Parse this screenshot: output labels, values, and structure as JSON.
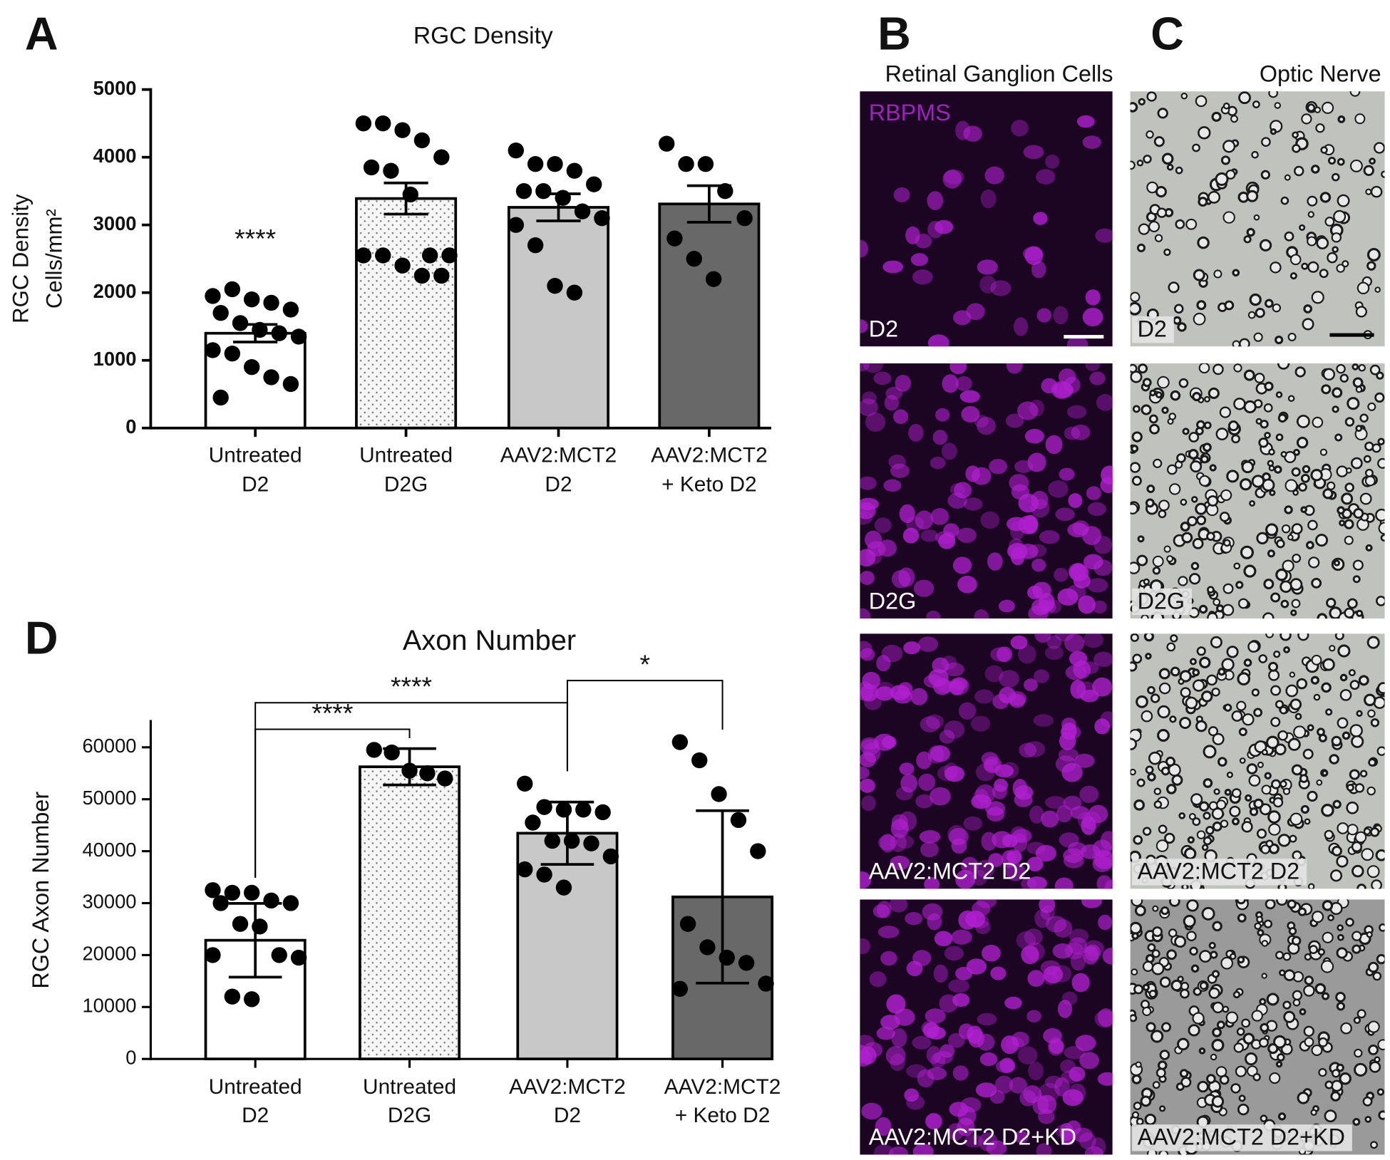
{
  "chart_data": [
    {
      "type": "bar",
      "panel": "A",
      "title": "RGC Density",
      "ylabel": [
        "RGC Density",
        "Cells/mm²"
      ],
      "categories": [
        [
          "Untreated",
          "D2"
        ],
        [
          "Untreated",
          "D2G"
        ],
        [
          "AAV2:MCT2",
          "D2"
        ],
        [
          "AAV2:MCT2",
          "+ Keto D2"
        ]
      ],
      "values": [
        1400,
        3390,
        3260,
        3310
      ],
      "errors": [
        130,
        230,
        200,
        270
      ],
      "points": [
        [
          1950,
          2050,
          1900,
          1850,
          1750,
          1700,
          1550,
          1450,
          1400,
          1350,
          1150,
          1100,
          900,
          750,
          650,
          450
        ],
        [
          4500,
          4500,
          4400,
          4250,
          4000,
          3850,
          3800,
          3450,
          2550,
          2550,
          2550,
          2550,
          2400,
          2250,
          2250
        ],
        [
          4100,
          3900,
          3900,
          3800,
          3600,
          3500,
          3500,
          3400,
          3200,
          3100,
          3000,
          2700,
          2100,
          2000
        ],
        [
          4200,
          3900,
          3900,
          3500,
          3100,
          2800,
          2500,
          2200
        ]
      ],
      "bar_colors": [
        "#ffffff",
        "#f4f4f4",
        "#c8c8c8",
        "#686868"
      ],
      "dotted": [
        false,
        true,
        false,
        false
      ],
      "ylim": [
        0,
        5000
      ],
      "yticks": [
        0,
        1000,
        2000,
        3000,
        4000,
        5000
      ],
      "annotations": [
        {
          "text": "****",
          "group": 0
        }
      ]
    },
    {
      "type": "bar",
      "panel": "D",
      "title": "Axon Number",
      "ylabel": [
        "RGC Axon Number"
      ],
      "categories": [
        [
          "Untreated",
          "D2"
        ],
        [
          "Untreated",
          "D2G"
        ],
        [
          "AAV2:MCT2",
          "D2"
        ],
        [
          "AAV2:MCT2",
          "+ Keto D2"
        ]
      ],
      "values": [
        22850,
        56250,
        43460,
        31200
      ],
      "errors": [
        7100,
        3500,
        6000,
        16600
      ],
      "points": [
        [
          32500,
          32000,
          32000,
          30500,
          30000,
          30000,
          26000,
          25500,
          20000,
          19500,
          20000,
          12000,
          11500
        ],
        [
          59500,
          59000,
          55500,
          55000,
          54000
        ],
        [
          53000,
          48500,
          48000,
          48000,
          47500,
          45500,
          42000,
          42000,
          41500,
          39000,
          36500,
          35500,
          33000
        ],
        [
          61000,
          57500,
          51000,
          46000,
          40000,
          26000,
          21500,
          19500,
          18500,
          14500,
          13500
        ]
      ],
      "bar_colors": [
        "#ffffff",
        "#f4f4f4",
        "#c8c8c8",
        "#686868"
      ],
      "dotted": [
        false,
        true,
        false,
        false
      ],
      "ylim": [
        0,
        65000
      ],
      "yticks": [
        0,
        10000,
        20000,
        30000,
        40000,
        50000,
        60000
      ],
      "comparisons": [
        {
          "label": "****",
          "groups": [
            0,
            1
          ]
        },
        {
          "label": "****",
          "groups": [
            0,
            2
          ]
        },
        {
          "label": "*",
          "groups": [
            2,
            3
          ]
        }
      ]
    }
  ],
  "images": [
    {
      "panel": "B",
      "heading": "Retinal Ganglion Cells",
      "stain": "RBPMS",
      "labels": [
        "D2",
        "D2G",
        "AAV2:MCT2 D2",
        "AAV2:MCT2 D2+KD"
      ]
    },
    {
      "panel": "C",
      "heading": "Optic Nerve",
      "labels": [
        "D2",
        "D2G",
        "AAV2:MCT2 D2",
        "AAV2:MCT2 D2+KD"
      ]
    }
  ]
}
